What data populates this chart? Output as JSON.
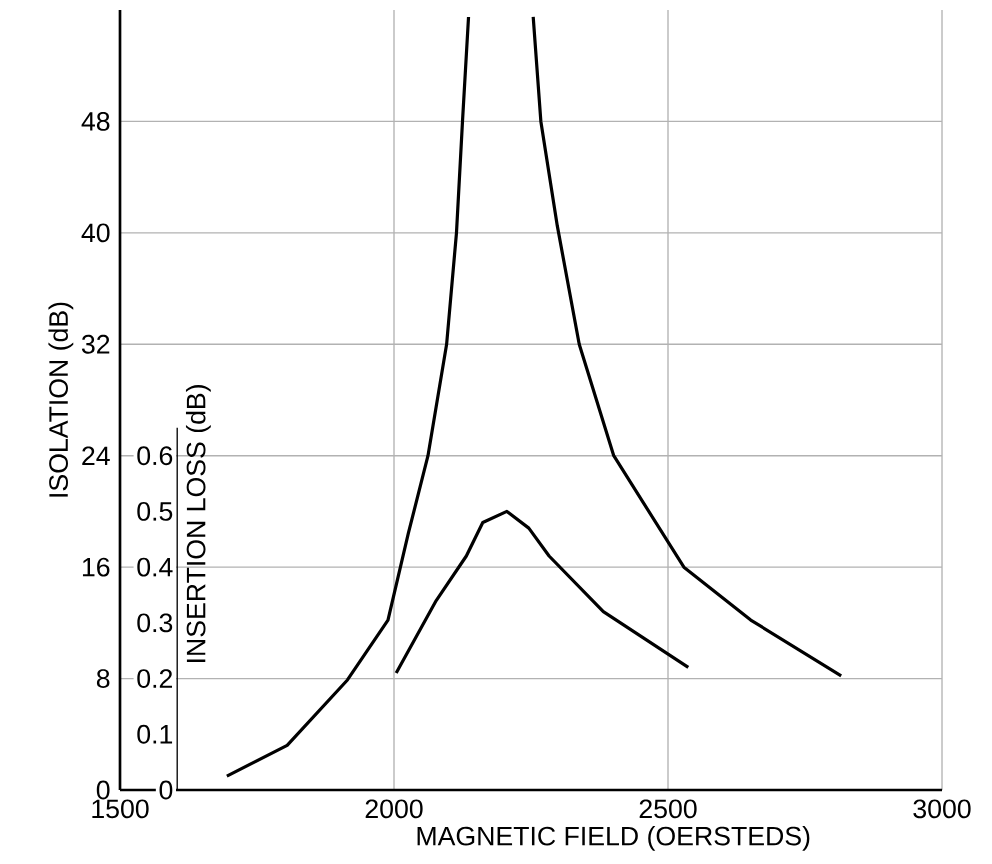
{
  "chart_data": {
    "type": "line",
    "xlabel": "MAGNETIC FIELD (OERSTEDS)",
    "ylabel": "ISOLATION (dB)",
    "y2label": "INSERTION LOSS (dB)",
    "xlim": [
      1500,
      3000
    ],
    "xticks": [
      1500,
      2000,
      2500,
      3000
    ],
    "ylim": [
      0,
      56
    ],
    "yticks": [
      0,
      8,
      16,
      24,
      32,
      40,
      48
    ],
    "y2lim": [
      0,
      1.4
    ],
    "y2ticks": [
      0,
      0.1,
      0.2,
      0.3,
      0.4,
      0.5,
      0.6
    ],
    "grid": true,
    "series": [
      {
        "color": "#000000",
        "x": [
          1695,
          1805,
          1915,
          1989,
          2026,
          2062,
          2096,
          2114,
          2125,
          2136,
          2195,
          2254,
          2268,
          2298,
          2338,
          2401,
          2529,
          2651,
          2816
        ],
        "values": [
          1.0,
          3.2,
          7.9,
          12.2,
          18.4,
          24,
          32,
          40,
          48,
          55.5,
          null,
          55.5,
          48,
          40.5,
          32,
          24,
          16,
          12.2,
          8.2
        ]
      },
      {
        "color": "#000000",
        "axis": "y2",
        "x": [
          2004,
          2077,
          2132,
          2162,
          2206,
          2246,
          2283,
          2382,
          2537
        ],
        "values": [
          0.21,
          0.34,
          0.42,
          0.48,
          0.5,
          0.47,
          0.42,
          0.32,
          0.22
        ]
      }
    ]
  }
}
